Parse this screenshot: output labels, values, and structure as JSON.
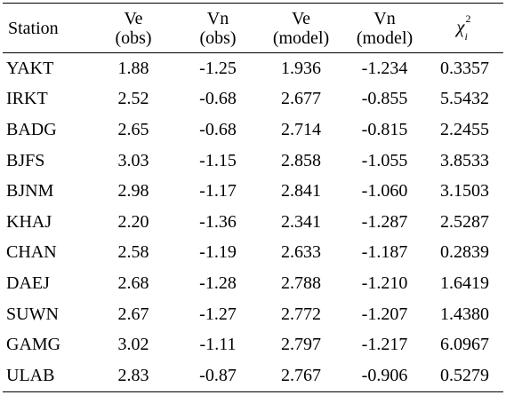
{
  "table": {
    "headers": [
      {
        "line1": "Station",
        "line2": ""
      },
      {
        "line1": "Ve",
        "line2": "(obs)"
      },
      {
        "line1": "Vn",
        "line2": "(obs)"
      },
      {
        "line1": "Ve",
        "line2": "(model)"
      },
      {
        "line1": "Vn",
        "line2": "(model)"
      },
      {
        "symbol": "χ",
        "sup": "2",
        "sub": "i"
      }
    ],
    "rows": [
      {
        "station": "YAKT",
        "ve_obs": "1.88",
        "vn_obs": "-1.25",
        "ve_model": "1.936",
        "vn_model": "-1.234",
        "chi2": "0.3357"
      },
      {
        "station": "IRKT",
        "ve_obs": "2.52",
        "vn_obs": "-0.68",
        "ve_model": "2.677",
        "vn_model": "-0.855",
        "chi2": "5.5432"
      },
      {
        "station": "BADG",
        "ve_obs": "2.65",
        "vn_obs": "-0.68",
        "ve_model": "2.714",
        "vn_model": "-0.815",
        "chi2": "2.2455"
      },
      {
        "station": "BJFS",
        "ve_obs": "3.03",
        "vn_obs": "-1.15",
        "ve_model": "2.858",
        "vn_model": "-1.055",
        "chi2": "3.8533"
      },
      {
        "station": "BJNM",
        "ve_obs": "2.98",
        "vn_obs": "-1.17",
        "ve_model": "2.841",
        "vn_model": "-1.060",
        "chi2": "3.1503"
      },
      {
        "station": "KHAJ",
        "ve_obs": "2.20",
        "vn_obs": "-1.36",
        "ve_model": "2.341",
        "vn_model": "-1.287",
        "chi2": "2.5287"
      },
      {
        "station": "CHAN",
        "ve_obs": "2.58",
        "vn_obs": "-1.19",
        "ve_model": "2.633",
        "vn_model": "-1.187",
        "chi2": "0.2839"
      },
      {
        "station": "DAEJ",
        "ve_obs": "2.68",
        "vn_obs": "-1.28",
        "ve_model": "2.788",
        "vn_model": "-1.210",
        "chi2": "1.6419"
      },
      {
        "station": "SUWN",
        "ve_obs": "2.67",
        "vn_obs": "-1.27",
        "ve_model": "2.772",
        "vn_model": "-1.207",
        "chi2": "1.4380"
      },
      {
        "station": "GAMG",
        "ve_obs": "3.02",
        "vn_obs": "-1.11",
        "ve_model": "2.797",
        "vn_model": "-1.217",
        "chi2": "6.0967"
      },
      {
        "station": "ULAB",
        "ve_obs": "2.83",
        "vn_obs": "-0.87",
        "ve_model": "2.767",
        "vn_model": "-0.906",
        "chi2": "0.5279"
      }
    ]
  }
}
